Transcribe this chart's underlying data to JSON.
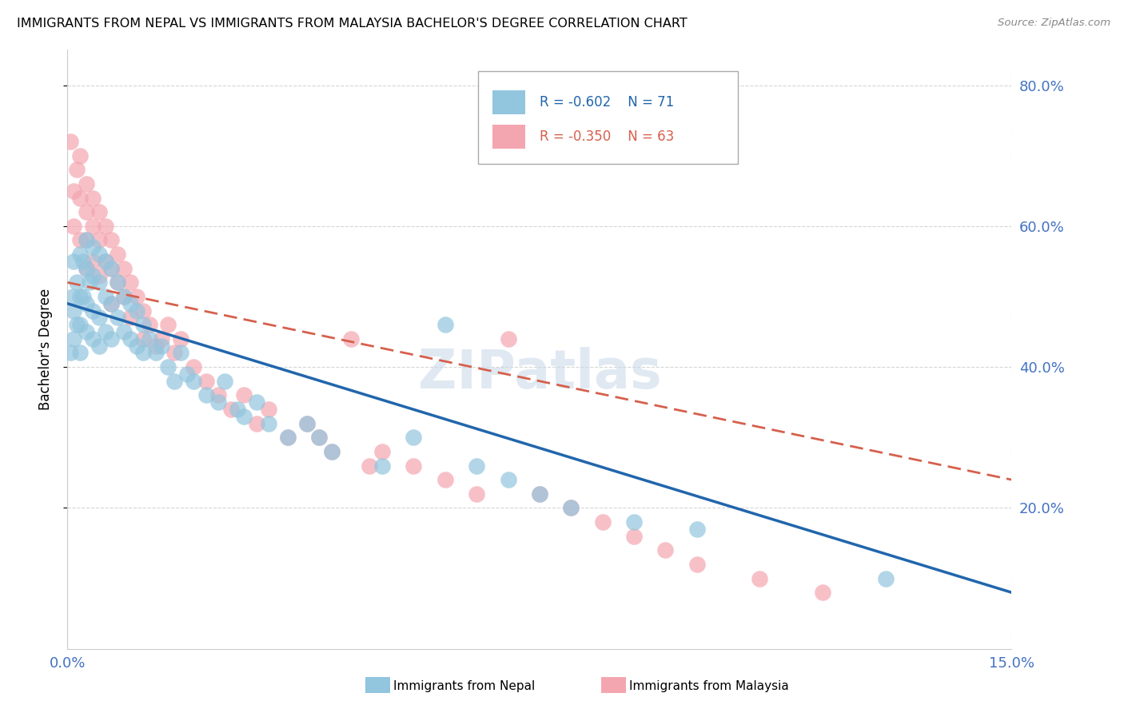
{
  "title": "IMMIGRANTS FROM NEPAL VS IMMIGRANTS FROM MALAYSIA BACHELOR'S DEGREE CORRELATION CHART",
  "source": "Source: ZipAtlas.com",
  "ylabel": "Bachelor's Degree",
  "nepal_R": -0.602,
  "nepal_N": 71,
  "malaysia_R": -0.35,
  "malaysia_N": 63,
  "xlim": [
    0.0,
    0.15
  ],
  "ylim": [
    0.0,
    0.85
  ],
  "right_ytick_labels": [
    "20.0%",
    "40.0%",
    "60.0%",
    "80.0%"
  ],
  "right_ytick_vals": [
    0.2,
    0.4,
    0.6,
    0.8
  ],
  "nepal_color": "#92c5de",
  "malaysia_color": "#f4a6b0",
  "nepal_line_color": "#2166ac",
  "malaysia_line_color": "#d6604d",
  "background_color": "#ffffff",
  "grid_color": "#cccccc",
  "watermark": "ZIPatlas",
  "nepal_line_x0": 0.0,
  "nepal_line_y0": 0.49,
  "nepal_line_x1": 0.15,
  "nepal_line_y1": 0.08,
  "malaysia_line_x0": 0.0,
  "malaysia_line_y0": 0.52,
  "malaysia_line_x1": 0.15,
  "malaysia_line_y1": 0.24,
  "nepal_scatter_x": [
    0.0005,
    0.0008,
    0.001,
    0.001,
    0.001,
    0.0015,
    0.0015,
    0.002,
    0.002,
    0.002,
    0.002,
    0.0025,
    0.0025,
    0.003,
    0.003,
    0.003,
    0.003,
    0.0035,
    0.004,
    0.004,
    0.004,
    0.004,
    0.005,
    0.005,
    0.005,
    0.005,
    0.006,
    0.006,
    0.006,
    0.007,
    0.007,
    0.007,
    0.008,
    0.008,
    0.009,
    0.009,
    0.01,
    0.01,
    0.011,
    0.011,
    0.012,
    0.012,
    0.013,
    0.014,
    0.015,
    0.016,
    0.017,
    0.018,
    0.019,
    0.02,
    0.022,
    0.024,
    0.025,
    0.027,
    0.028,
    0.03,
    0.032,
    0.035,
    0.038,
    0.04,
    0.042,
    0.05,
    0.055,
    0.06,
    0.065,
    0.07,
    0.075,
    0.08,
    0.09,
    0.1,
    0.13
  ],
  "nepal_scatter_y": [
    0.42,
    0.5,
    0.55,
    0.48,
    0.44,
    0.52,
    0.46,
    0.56,
    0.5,
    0.46,
    0.42,
    0.55,
    0.5,
    0.58,
    0.54,
    0.49,
    0.45,
    0.52,
    0.57,
    0.53,
    0.48,
    0.44,
    0.56,
    0.52,
    0.47,
    0.43,
    0.55,
    0.5,
    0.45,
    0.54,
    0.49,
    0.44,
    0.52,
    0.47,
    0.5,
    0.45,
    0.49,
    0.44,
    0.48,
    0.43,
    0.46,
    0.42,
    0.44,
    0.42,
    0.43,
    0.4,
    0.38,
    0.42,
    0.39,
    0.38,
    0.36,
    0.35,
    0.38,
    0.34,
    0.33,
    0.35,
    0.32,
    0.3,
    0.32,
    0.3,
    0.28,
    0.26,
    0.3,
    0.46,
    0.26,
    0.24,
    0.22,
    0.2,
    0.18,
    0.17,
    0.1
  ],
  "malaysia_scatter_x": [
    0.0005,
    0.001,
    0.001,
    0.0015,
    0.002,
    0.002,
    0.002,
    0.003,
    0.003,
    0.003,
    0.003,
    0.004,
    0.004,
    0.004,
    0.005,
    0.005,
    0.005,
    0.006,
    0.006,
    0.007,
    0.007,
    0.007,
    0.008,
    0.008,
    0.009,
    0.009,
    0.01,
    0.01,
    0.011,
    0.012,
    0.012,
    0.013,
    0.014,
    0.015,
    0.016,
    0.017,
    0.018,
    0.02,
    0.022,
    0.024,
    0.026,
    0.028,
    0.03,
    0.032,
    0.035,
    0.038,
    0.04,
    0.042,
    0.045,
    0.048,
    0.05,
    0.055,
    0.06,
    0.065,
    0.07,
    0.075,
    0.08,
    0.085,
    0.09,
    0.095,
    0.1,
    0.11,
    0.12
  ],
  "malaysia_scatter_y": [
    0.72,
    0.65,
    0.6,
    0.68,
    0.7,
    0.64,
    0.58,
    0.66,
    0.62,
    0.58,
    0.54,
    0.64,
    0.6,
    0.55,
    0.62,
    0.58,
    0.53,
    0.6,
    0.55,
    0.58,
    0.54,
    0.49,
    0.56,
    0.52,
    0.54,
    0.5,
    0.52,
    0.47,
    0.5,
    0.48,
    0.44,
    0.46,
    0.43,
    0.44,
    0.46,
    0.42,
    0.44,
    0.4,
    0.38,
    0.36,
    0.34,
    0.36,
    0.32,
    0.34,
    0.3,
    0.32,
    0.3,
    0.28,
    0.44,
    0.26,
    0.28,
    0.26,
    0.24,
    0.22,
    0.44,
    0.22,
    0.2,
    0.18,
    0.16,
    0.14,
    0.12,
    0.1,
    0.08
  ]
}
